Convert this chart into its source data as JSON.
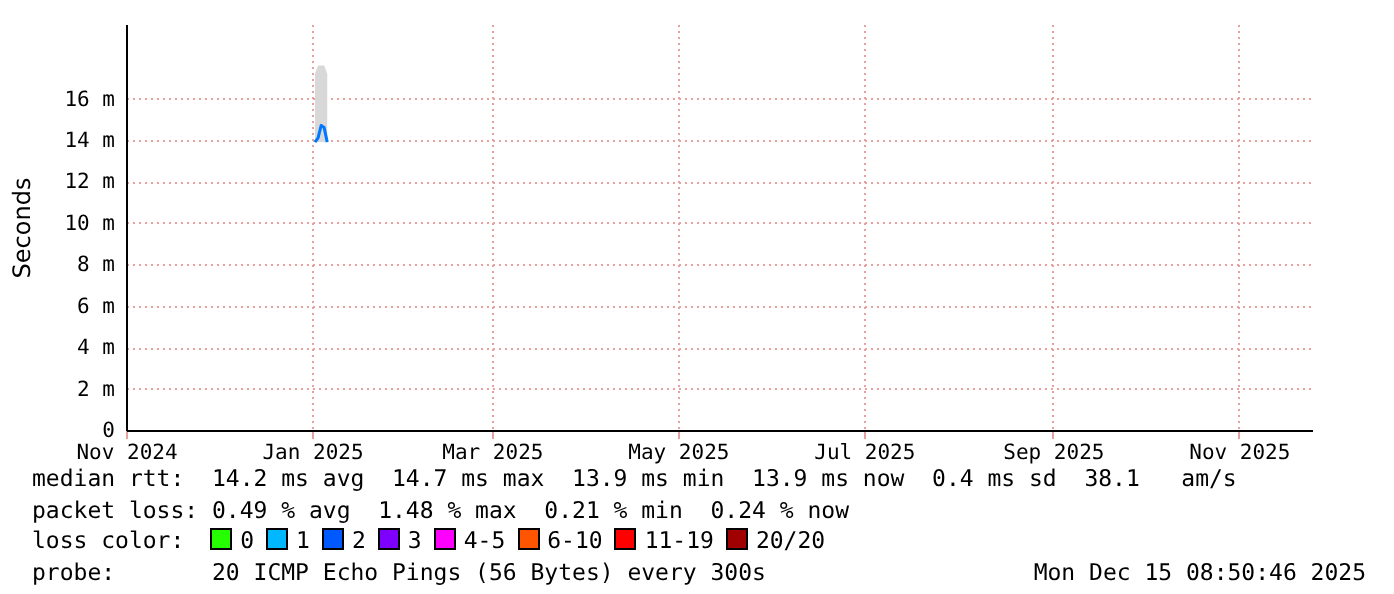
{
  "chart_data": {
    "type": "line",
    "ylabel": "Seconds",
    "x": [
      "2025-01-02",
      "2025-01-03",
      "2025-01-04",
      "2025-01-05",
      "2025-01-06"
    ],
    "series": [
      {
        "color": "#0077ff",
        "values": [
          13.9,
          14.1,
          14.7,
          14.6,
          13.9
        ],
        "lower": [
          13.9,
          13.9,
          13.9,
          13.9,
          13.9
        ],
        "upper": [
          17.2,
          17.6,
          17.6,
          17.6,
          17.2
        ]
      }
    ],
    "xlim": [
      "2024-11-01",
      "2025-11-25"
    ],
    "xticks": [
      {
        "value": "2024-11-01",
        "label": "Nov 2024"
      },
      {
        "value": "2025-01-01",
        "label": "Jan 2025"
      },
      {
        "value": "2025-03-01",
        "label": "Mar 2025"
      },
      {
        "value": "2025-05-01",
        "label": "May 2025"
      },
      {
        "value": "2025-07-01",
        "label": "Jul 2025"
      },
      {
        "value": "2025-09-01",
        "label": "Sep 2025"
      },
      {
        "value": "2025-11-01",
        "label": "Nov 2025"
      }
    ],
    "ylim": [
      0,
      19.6
    ],
    "yticks": [
      0,
      {
        "value": 2,
        "label": "2 m"
      },
      {
        "value": 4,
        "label": "4 m"
      },
      {
        "value": 6,
        "label": "6 m"
      },
      {
        "value": 8,
        "label": "8 m"
      },
      {
        "value": 10,
        "label": "10 m"
      },
      {
        "value": 12,
        "label": "12 m"
      },
      {
        "value": 14,
        "label": "14 m"
      },
      {
        "value": 16,
        "label": "16 m"
      }
    ],
    "grid": true,
    "line_style": "solid",
    "marker": "none",
    "annotations": [
      "median rtt:  14.2 ms avg  14.7 ms max  13.9 ms min  13.9 ms now  0.4 ms sd  38.1   am/s",
      "packet loss: 0.49 % avg  1.48 % max  0.21 % min  0.24 % now",
      "loss color:  0  1  2  3  4-5  6-10  11-19  20/20",
      "probe:       20 ICMP Echo Pings (56 Bytes) every 300s",
      "Mon Dec 15 08:50:46 2025"
    ]
  }
}
